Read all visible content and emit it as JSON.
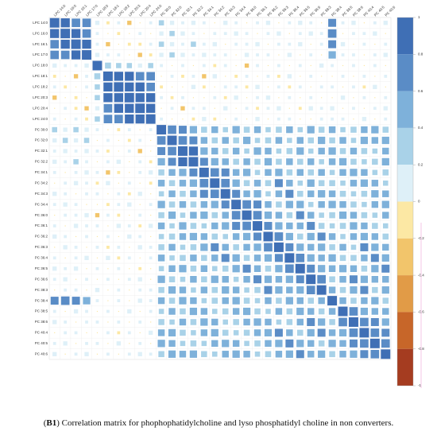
{
  "chart_data": {
    "type": "correlation-matrix",
    "variables": [
      "LPC 14:0",
      "LPC 16:0",
      "LPC 16:1",
      "LPC 17:0",
      "LPC 18:0",
      "LPC 18:1",
      "LPC 18:2",
      "LPC 20:3",
      "LPC 20:4",
      "LPC 24:0",
      "PC 30:0",
      "PC 32:0",
      "PC 32:1",
      "PC 32:2",
      "PC 34:1",
      "PC 34:2",
      "PC 34:3",
      "PC 34:4",
      "PC 36:0",
      "PC 36:1",
      "PC 36:2",
      "PC 36:3",
      "PC 36:4",
      "PC 36:5",
      "PC 36:6",
      "PC 38:3",
      "PC 38:4",
      "PC 38:5",
      "PC 38:6",
      "PC 40:4",
      "PC 40:5",
      "PC 40:6"
    ],
    "matrix": [
      [
        1
      ],
      [
        0.9,
        1
      ],
      [
        0.8,
        0.9,
        1
      ],
      [
        0.8,
        0.8,
        0.9,
        1
      ],
      [
        0.2,
        0.1,
        0.1,
        0.2,
        1
      ],
      [
        -0.1,
        0,
        -0.2,
        0.1,
        0.4,
        1
      ],
      [
        0.1,
        -0.1,
        0,
        0.1,
        0.3,
        0.9,
        1
      ],
      [
        -0.2,
        0,
        -0.1,
        0,
        0.3,
        0.9,
        0.9,
        1
      ],
      [
        0,
        0.1,
        -0.1,
        -0.2,
        0.2,
        0.8,
        0.9,
        0.9,
        1
      ],
      [
        0.1,
        0,
        0.1,
        -0.1,
        0.3,
        0.8,
        0.8,
        0.9,
        0.9,
        1
      ],
      [
        0.3,
        0.2,
        0.3,
        0.2,
        0.1,
        0,
        -0.1,
        0.1,
        0,
        0.1,
        1
      ],
      [
        0.2,
        0.3,
        0.2,
        0.3,
        0,
        0.1,
        0,
        -0.1,
        0.1,
        0,
        0.8,
        1
      ],
      [
        0.1,
        0.2,
        0.1,
        0.2,
        0.1,
        -0.1,
        0,
        0.1,
        -0.2,
        0,
        0.7,
        0.8,
        1
      ],
      [
        0.2,
        0.1,
        0.3,
        0.1,
        0,
        0.1,
        0.2,
        0,
        0.1,
        -0.1,
        0.6,
        0.7,
        0.9,
        1
      ],
      [
        0.1,
        0,
        0.1,
        0.2,
        0.1,
        -0.2,
        -0.1,
        0,
        0.1,
        0.2,
        0.4,
        0.5,
        0.6,
        0.7,
        1
      ],
      [
        0,
        0.1,
        0.2,
        0.1,
        -0.1,
        0.2,
        0,
        0.1,
        0,
        -0.1,
        0.5,
        0.4,
        0.5,
        0.6,
        0.8,
        1
      ],
      [
        0.2,
        0.1,
        0,
        0.1,
        0.1,
        0,
        0.1,
        -0.1,
        0.2,
        0,
        0.3,
        0.5,
        0.4,
        0.5,
        0.7,
        0.8,
        1
      ],
      [
        0.1,
        0.2,
        0.1,
        0,
        0,
        -0.1,
        0.1,
        0.2,
        0,
        0.1,
        0.6,
        0.4,
        0.5,
        0.4,
        0.5,
        0.6,
        0.7,
        1
      ],
      [
        0,
        0.1,
        0.1,
        0.2,
        -0.2,
        0.1,
        -0.1,
        0,
        0.1,
        0,
        0.4,
        0.6,
        0.3,
        0.5,
        0.6,
        0.4,
        0.5,
        0.8,
        1
      ],
      [
        0.1,
        0,
        0.2,
        0.1,
        0.1,
        0,
        0.2,
        0.1,
        -0.1,
        0.2,
        0.5,
        0.3,
        0.6,
        0.4,
        0.3,
        0.5,
        0.6,
        0.7,
        0.8,
        1
      ],
      [
        0.2,
        0.1,
        0,
        0.1,
        0,
        0.1,
        0,
        0.2,
        0.1,
        0,
        0.3,
        0.4,
        0.5,
        0.6,
        0.5,
        0.4,
        0.3,
        0.5,
        0.6,
        0.7,
        1
      ],
      [
        0,
        0.2,
        0.1,
        0,
        0.1,
        -0.1,
        0.1,
        0,
        0.2,
        0.1,
        0.4,
        0.5,
        0.3,
        0.4,
        0.6,
        0.7,
        0.5,
        0.4,
        0.5,
        0.6,
        0.8,
        1
      ],
      [
        0.1,
        0,
        0.1,
        0.2,
        0,
        0.2,
        -0.1,
        0.1,
        0,
        0.1,
        0.5,
        0.3,
        0.4,
        0.5,
        0.4,
        0.5,
        0.7,
        0.6,
        0.4,
        0.5,
        0.6,
        0.7,
        1
      ],
      [
        0.2,
        0.1,
        0.2,
        0,
        0.1,
        0,
        0.1,
        0,
        -0.1,
        0,
        0.3,
        0.5,
        0.6,
        0.4,
        0.5,
        0.3,
        0.4,
        0.6,
        0.7,
        0.5,
        0.4,
        0.6,
        0.8,
        1
      ],
      [
        0.1,
        0.2,
        0,
        0.1,
        0,
        0.1,
        0,
        0.1,
        0.2,
        0,
        0.6,
        0.4,
        0.3,
        0.5,
        0.4,
        0.6,
        0.5,
        0.3,
        0.5,
        0.7,
        0.6,
        0.5,
        0.6,
        0.7,
        1
      ],
      [
        0,
        0.1,
        0.1,
        0,
        0.2,
        0,
        0.1,
        0,
        0.1,
        0.1,
        0.4,
        0.6,
        0.5,
        0.3,
        0.5,
        0.4,
        0.6,
        0.5,
        0.3,
        0.4,
        0.7,
        0.6,
        0.5,
        0.6,
        0.8,
        1
      ],
      [
        0.7,
        0.8,
        0.7,
        0.6,
        0.1,
        0,
        0.1,
        0,
        0.2,
        0.1,
        0.5,
        0.4,
        0.6,
        0.5,
        0.3,
        0.4,
        0.5,
        0.6,
        0.4,
        0.3,
        0.5,
        0.4,
        0.6,
        0.5,
        0.4,
        0.5,
        1
      ],
      [
        0.1,
        0,
        0.2,
        0.1,
        0,
        0.1,
        0,
        0.2,
        0,
        0.1,
        0.3,
        0.5,
        0.4,
        0.6,
        0.5,
        0.3,
        0.4,
        0.5,
        0.6,
        0.4,
        0.3,
        0.5,
        0.4,
        0.6,
        0.5,
        0.4,
        0.5,
        1
      ],
      [
        0.2,
        0.1,
        0,
        0.1,
        0.1,
        0,
        0.1,
        0,
        0.1,
        0,
        0.4,
        0.3,
        0.5,
        0.4,
        0.6,
        0.5,
        0.3,
        0.4,
        0.5,
        0.6,
        0.5,
        0.3,
        0.4,
        0.5,
        0.7,
        0.6,
        0.4,
        0.8,
        1
      ],
      [
        0,
        0.1,
        0.1,
        0,
        0,
        0.1,
        -0.1,
        0.1,
        0,
        0.2,
        0.5,
        0.6,
        0.4,
        0.3,
        0.5,
        0.6,
        0.4,
        0.3,
        0.4,
        0.5,
        0.6,
        0.7,
        0.5,
        0.4,
        0.6,
        0.7,
        0.5,
        0.6,
        0.8,
        1
      ],
      [
        0.1,
        0.2,
        0,
        0.1,
        0.1,
        0,
        0.2,
        0,
        0.1,
        0,
        0.6,
        0.5,
        0.3,
        0.4,
        0.3,
        0.5,
        0.6,
        0.5,
        0.3,
        0.4,
        0.5,
        0.6,
        0.7,
        0.6,
        0.5,
        0.4,
        0.6,
        0.5,
        0.7,
        0.8,
        1
      ],
      [
        0.2,
        0,
        0.1,
        0.2,
        0,
        0.1,
        0,
        0.1,
        0.2,
        0.1,
        0.4,
        0.6,
        0.5,
        0.6,
        0.4,
        0.3,
        0.5,
        0.6,
        0.5,
        0.3,
        0.4,
        0.5,
        0.6,
        0.7,
        0.5,
        0.6,
        0.4,
        0.5,
        0.6,
        0.7,
        0.8,
        1
      ]
    ],
    "colorbar_lim": [
      -1,
      1
    ],
    "colorbar_ticks": [
      1,
      0.8,
      0.6,
      0.4,
      0.2,
      0,
      -0.2,
      -0.4,
      -0.6,
      -0.8,
      -1
    ],
    "colorscale": [
      "#3f6fb5",
      "#5a8cc6",
      "#7eb1da",
      "#a9d2e8",
      "#def0f8",
      "#fce8a4",
      "#f2c56b",
      "#e19b47",
      "#c76629",
      "#a53c20"
    ],
    "caption": [
      {
        "text": "(",
        "bold": false
      },
      {
        "text": "B1",
        "bold": true
      },
      {
        "text": ") Correlation matrix for phophophatidylcholine and lyso phosphatidyl choline in non converters.",
        "bold": false
      }
    ]
  }
}
